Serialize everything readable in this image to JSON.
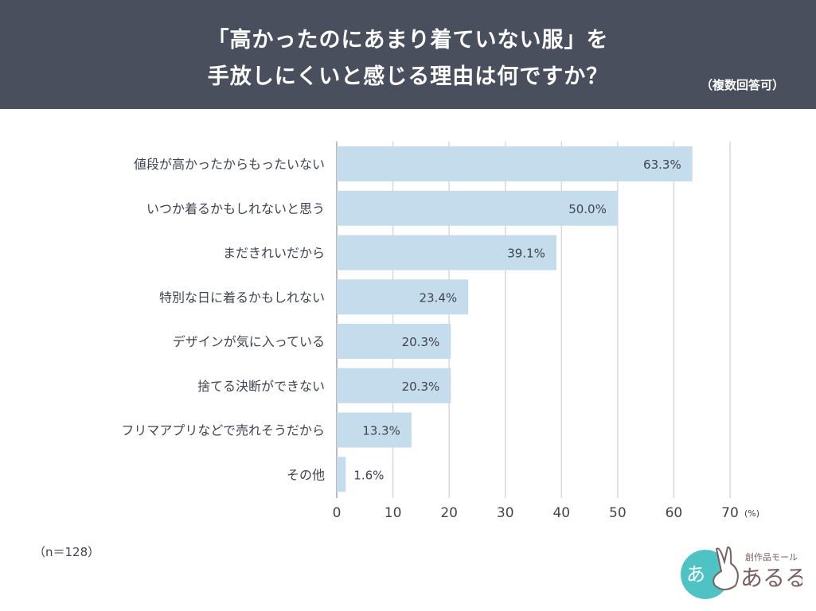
{
  "header": {
    "title_line1": "「高かったのにあまり着ていない服」を",
    "title_line2": "手放しにくいと感じる理由は何ですか？",
    "note": "（複数回答可）"
  },
  "sample": "（n＝128）",
  "logo": {
    "text": "創作品モール あるる"
  },
  "colors": {
    "header_bg": "#4a4f5e",
    "bar": "#c5dcec",
    "grid": "#d9d9d9",
    "text": "#3f4450"
  },
  "chart_data": {
    "type": "bar",
    "orientation": "horizontal",
    "categories": [
      "値段が高かったからもったいない",
      "いつか着るかもしれないと思う",
      "まだきれいだから",
      "特別な日に着るかもしれない",
      "デザインが気に入っている",
      "捨てる決断ができない",
      "フリマアプリなどで売れそうだから",
      "その他"
    ],
    "values": [
      63.3,
      50.0,
      39.1,
      23.4,
      20.3,
      20.3,
      13.3,
      1.6
    ],
    "labels": [
      "63.3%",
      "50.0%",
      "39.1%",
      "23.4%",
      "20.3%",
      "20.3%",
      "13.3%",
      "1.6%"
    ],
    "xlim": [
      0,
      70
    ],
    "xticks": [
      0,
      10,
      20,
      30,
      40,
      50,
      60,
      70
    ],
    "xunit": "(%)",
    "grid": true
  }
}
